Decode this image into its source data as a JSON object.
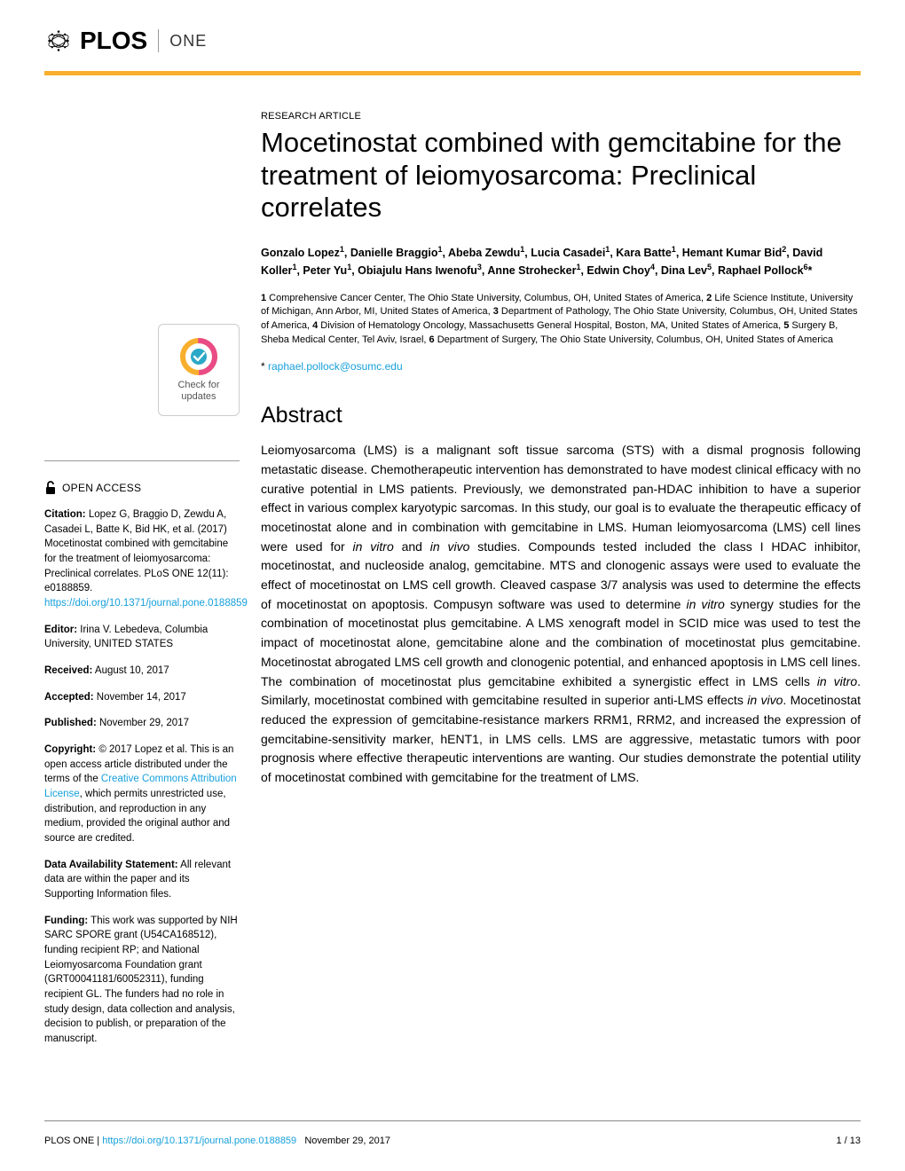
{
  "brand": {
    "plos": "PLOS",
    "one": "ONE",
    "accent_color": "#f8af2d"
  },
  "check_updates": {
    "line1": "Check for",
    "line2": "updates"
  },
  "open_access": "OPEN ACCESS",
  "citation": {
    "label": "Citation:",
    "text": " Lopez G, Braggio D, Zewdu A, Casadei L, Batte K, Bid HK, et al. (2017) Mocetinostat combined with gemcitabine for the treatment of leiomyosarcoma: Preclinical correlates. PLoS ONE 12(11): e0188859. ",
    "link": "https://doi.org/10.1371/journal.pone.0188859"
  },
  "editor": {
    "label": "Editor:",
    "text": " Irina V. Lebedeva, Columbia University, UNITED STATES"
  },
  "received": {
    "label": "Received:",
    "text": " August 10, 2017"
  },
  "accepted": {
    "label": "Accepted:",
    "text": " November 14, 2017"
  },
  "published": {
    "label": "Published:",
    "text": " November 29, 2017"
  },
  "copyright": {
    "label": "Copyright:",
    "text_before": " © 2017 Lopez et al. This is an open access article distributed under the terms of the ",
    "link": "Creative Commons Attribution License",
    "text_after": ", which permits unrestricted use, distribution, and reproduction in any medium, provided the original author and source are credited."
  },
  "data_stmt": {
    "label": "Data Availability Statement:",
    "text": " All relevant data are within the paper and its Supporting Information files."
  },
  "funding": {
    "label": "Funding:",
    "text": " This work was supported by NIH SARC SPORE grant (U54CA168512), funding recipient RP; and National Leiomyosarcoma Foundation grant (GRT00041181/60052311), funding recipient GL. The funders had no role in study design, data collection and analysis, decision to publish, or preparation of the manuscript."
  },
  "article": {
    "type": "RESEARCH ARTICLE",
    "title": "Mocetinostat combined with gemcitabine for the treatment of leiomyosarcoma: Preclinical correlates",
    "authors_html": "Gonzalo Lopez<sup>1</sup>, Danielle Braggio<sup>1</sup>, Abeba Zewdu<sup>1</sup>, Lucia Casadei<sup>1</sup>, Kara Batte<sup>1</sup>, Hemant Kumar Bid<sup>2</sup>, David Koller<sup>1</sup>, Peter Yu<sup>1</sup>, Obiajulu Hans Iwenofu<sup>3</sup>, Anne Strohecker<sup>1</sup>, Edwin Choy<sup>4</sup>, Dina Lev<sup>5</sup>, Raphael Pollock<sup>6</sup>*",
    "affils_html": "<span class=\"n\">1</span> Comprehensive Cancer Center, The Ohio State University, Columbus, OH, United States of America, <span class=\"n\">2</span> Life Science Institute, University of Michigan, Ann Arbor, MI, United States of America, <span class=\"n\">3</span> Department of Pathology, The Ohio State University, Columbus, OH, United States of America, <span class=\"n\">4</span> Division of Hematology Oncology, Massachusetts General Hospital, Boston, MA, United States of America, <span class=\"n\">5</span> Surgery B, Sheba Medical Center, Tel Aviv, Israel, <span class=\"n\">6</span> Department of Surgery, The Ohio State University, Columbus, OH, United States of America",
    "corr_star": "* ",
    "corr_email": "raphael.pollock@osumc.edu",
    "abstract_h": "Abstract",
    "abstract_html": "Leiomyosarcoma (LMS) is a malignant soft tissue sarcoma (STS) with a dismal prognosis following metastatic disease. Chemotherapeutic intervention has demonstrated to have modest clinical efficacy with no curative potential in LMS patients. Previously, we demonstrated pan-HDAC inhibition to have a superior effect in various complex karyotypic sarcomas. In this study, our goal is to evaluate the therapeutic efficacy of mocetinostat alone and in combination with gemcitabine in LMS. Human leiomyosarcoma (LMS) cell lines were used for <span class=\"ital\">in vitro</span> and <span class=\"ital\">in vivo</span> studies. Compounds tested included the class I HDAC inhibitor, mocetinostat, and nucleoside analog, gemcitabine. MTS and clonogenic assays were used to evaluate the effect of mocetinostat on LMS cell growth. Cleaved caspase 3/7 analysis was used to determine the effects of mocetinostat on apoptosis. Compusyn software was used to determine <span class=\"ital\">in vitro</span> synergy studies for the combination of mocetinostat plus gemcitabine. A LMS xenograft model in SCID mice was used to test the impact of mocetinostat alone, gemcitabine alone and the combination of mocetinostat plus gemcitabine. Mocetinostat abrogated LMS cell growth and clonogenic potential, and enhanced apoptosis in LMS cell lines. The combination of mocetinostat plus gemcitabine exhibited a synergistic effect in LMS cells <span class=\"ital\">in vitro</span>. Similarly, mocetinostat combined with gemcitabine resulted in superior anti-LMS effects <span class=\"ital\">in vivo</span>. Mocetinostat reduced the expression of gemcitabine-resistance markers RRM1, RRM2, and increased the expression of gemcitabine-sensitivity marker, hENT1, in LMS cells. LMS are aggressive, metastatic tumors with poor prognosis where effective therapeutic interventions are wanting. Our studies demonstrate the potential utility of mocetinostat combined with gemcitabine for the treatment of LMS."
  },
  "footer": {
    "journal": "PLOS ONE | ",
    "doi": "https://doi.org/10.1371/journal.pone.0188859",
    "date": "November 29, 2017",
    "page": "1 / 13"
  },
  "colors": {
    "link": "#16a0db",
    "check_ring_outer": "#f8af2d",
    "check_ring_inner": "#e94b86",
    "check_center": "#2aa8c7"
  }
}
